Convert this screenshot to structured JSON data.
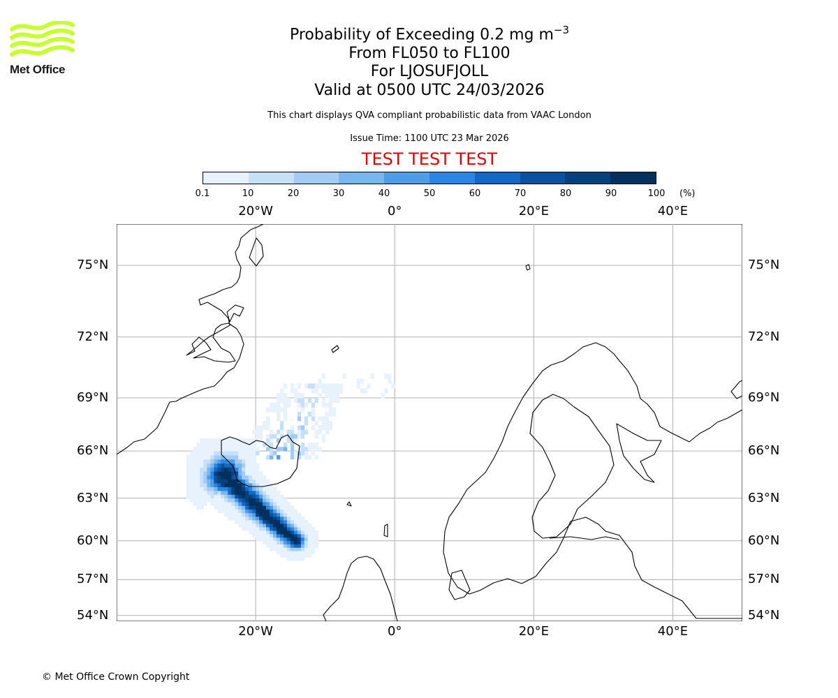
{
  "brand": {
    "name": "Met Office",
    "logo_color": "#c8ff2e"
  },
  "title": {
    "main_prefix": "Probability of Exceeding 0.2 mg m",
    "main_superscript": "−3",
    "levels": "From FL050 to FL100",
    "volcano": "For LJOSUFJOLL",
    "valid": "Valid at 0500 UTC 24/03/2026"
  },
  "note": "This chart displays QVA compliant probabilistic data from VAAC London",
  "issue_time": "Issue Time: 1100 UTC 23 Mar 2026",
  "test_banner": "TEST TEST TEST",
  "colorbar": {
    "ticks": [
      "0.1",
      "10",
      "20",
      "30",
      "40",
      "50",
      "60",
      "70",
      "80",
      "90",
      "100"
    ],
    "unit": "(%)",
    "colors": [
      "#e8f2fd",
      "#c6e0f8",
      "#a2ccf3",
      "#7ab6ee",
      "#4f9de8",
      "#2a86e2",
      "#1268c4",
      "#0a52a0",
      "#06417e",
      "#03305c"
    ]
  },
  "map": {
    "lon_labels": [
      "20°W",
      "0°",
      "20°E",
      "40°E"
    ],
    "lat_labels": [
      "75°N",
      "72°N",
      "69°N",
      "66°N",
      "63°N",
      "60°N",
      "57°N",
      "54°N"
    ]
  },
  "chart_data": {
    "type": "heatmap",
    "title": "Probability of Exceeding 0.2 mg m−3",
    "units": "%",
    "bins": [
      0.1,
      10,
      20,
      30,
      40,
      50,
      60,
      70,
      80,
      90,
      100
    ],
    "lon_range": [
      -40,
      50
    ],
    "lat_range": [
      53.5,
      76.5
    ],
    "projection": "Mercator",
    "plume": {
      "core_start": {
        "lon": -25,
        "lat": 64.7
      },
      "core_end": {
        "lon": -14,
        "lat": 59.9
      },
      "max_probability": 100,
      "fringe_extent_north": {
        "lon": -9,
        "lat": 69.0
      }
    }
  },
  "copyright": "© Met Office Crown Copyright"
}
